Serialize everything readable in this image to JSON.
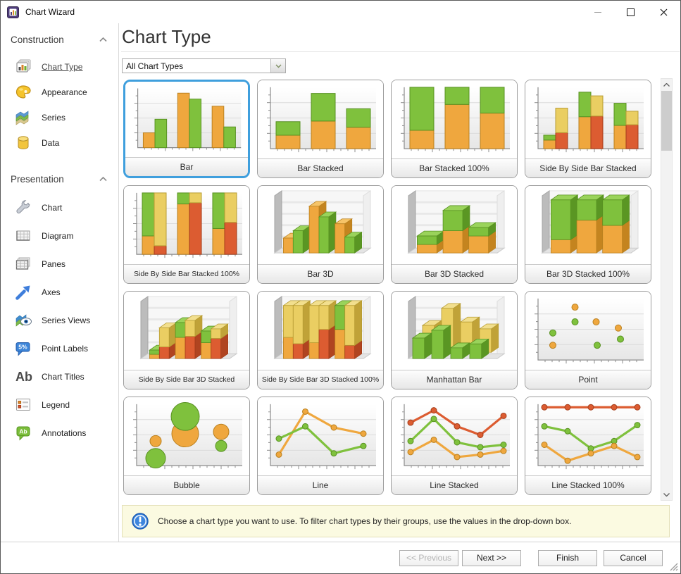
{
  "window": {
    "title": "Chart Wizard",
    "controls": [
      {
        "name": "minimize"
      },
      {
        "name": "maximize"
      },
      {
        "name": "close"
      }
    ]
  },
  "palette": {
    "o": {
      "f": "#EFA73E",
      "t": "#F6C468",
      "s": "#C4841F",
      "k": "#B9801F"
    },
    "g": {
      "f": "#7FC13D",
      "t": "#9AD35B",
      "s": "#5A9623",
      "k": "#579121"
    },
    "r": {
      "f": "#DC5C31",
      "t": "#E87F55",
      "s": "#B04420",
      "k": "#A43D1A"
    },
    "y": {
      "f": "#EACE62",
      "t": "#F2DF8E",
      "s": "#C0A238",
      "k": "#B79C33"
    }
  },
  "accent": "#3F9FDD",
  "sidebar": {
    "groups": [
      {
        "label": "Construction",
        "collapsed": false,
        "items": [
          {
            "label": "Chart Type",
            "icon": "chart-type",
            "selected": true
          },
          {
            "label": "Appearance",
            "icon": "appearance",
            "selected": false
          },
          {
            "label": "Series",
            "icon": "series",
            "selected": false
          },
          {
            "label": "Data",
            "icon": "data",
            "selected": false
          }
        ]
      },
      {
        "label": "Presentation",
        "collapsed": false,
        "items": [
          {
            "label": "Chart",
            "icon": "chart",
            "selected": false
          },
          {
            "label": "Diagram",
            "icon": "diagram",
            "selected": false
          },
          {
            "label": "Panes",
            "icon": "panes",
            "selected": false
          },
          {
            "label": "Axes",
            "icon": "axes",
            "selected": false
          },
          {
            "label": "Series Views",
            "icon": "series-views",
            "selected": false
          },
          {
            "label": "Point Labels",
            "icon": "point-labels",
            "selected": false
          },
          {
            "label": "Chart Titles",
            "icon": "chart-titles",
            "selected": false
          },
          {
            "label": "Legend",
            "icon": "legend",
            "selected": false
          },
          {
            "label": "Annotations",
            "icon": "annotations",
            "selected": false
          }
        ]
      }
    ]
  },
  "main": {
    "title": "Chart Type",
    "filter": {
      "value": "All Chart Types"
    },
    "info": "Choose a chart type you want to use. To filter chart types by their groups, use the values in the drop-down box.",
    "tiles": [
      {
        "label": "Bar",
        "selected": true,
        "chart": {
          "t": "bars",
          "g": [
            [
              [
                [
                  "o",
                  25
                ]
              ],
              [
                [
                  "g",
                  48
                ]
              ]
            ],
            [
              [
                [
                  "o",
                  92
                ]
              ],
              [
                [
                  "g",
                  82
                ]
              ]
            ],
            [
              [
                [
                  "o",
                  70
                ]
              ],
              [
                [
                  "g",
                  35
                ]
              ]
            ]
          ]
        }
      },
      {
        "label": "Bar Stacked",
        "selected": false,
        "chart": {
          "t": "bars",
          "g": [
            [
              [
                [
                  "o",
                  22
                ],
                [
                  "g",
                  22
                ]
              ]
            ],
            [
              [
                [
                  "o",
                  45
                ],
                [
                  "g",
                  45
                ]
              ]
            ],
            [
              [
                [
                  "o",
                  35
                ],
                [
                  "g",
                  30
                ]
              ]
            ]
          ]
        }
      },
      {
        "label": "Bar Stacked 100%",
        "selected": false,
        "chart": {
          "t": "bars",
          "g": [
            [
              [
                [
                  "o",
                  30
                ],
                [
                  "g",
                  70
                ]
              ]
            ],
            [
              [
                [
                  "o",
                  72
                ],
                [
                  "g",
                  28
                ]
              ]
            ],
            [
              [
                [
                  "o",
                  58
                ],
                [
                  "g",
                  42
                ]
              ]
            ]
          ]
        }
      },
      {
        "label": "Side By Side Bar Stacked",
        "selected": false,
        "chart": {
          "t": "bars",
          "g": [
            [
              [
                [
                  "o",
                  14
                ],
                [
                  "g",
                  8
                ]
              ],
              [
                [
                  "r",
                  26
                ],
                [
                  "y",
                  40
                ]
              ]
            ],
            [
              [
                [
                  "o",
                  52
                ],
                [
                  "g",
                  40
                ]
              ],
              [
                [
                  "r",
                  53
                ],
                [
                  "y",
                  33
                ]
              ]
            ],
            [
              [
                [
                  "o",
                  38
                ],
                [
                  "g",
                  36
                ]
              ],
              [
                [
                  "r",
                  39
                ],
                [
                  "y",
                  22
                ]
              ]
            ]
          ]
        }
      },
      {
        "label": "Side By Side Bar Stacked 100%",
        "selected": false,
        "chart": {
          "t": "bars",
          "g": [
            [
              [
                [
                  "o",
                  30
                ],
                [
                  "g",
                  70
                ]
              ],
              [
                [
                  "r",
                  14
                ],
                [
                  "y",
                  86
                ]
              ]
            ],
            [
              [
                [
                  "o",
                  82
                ],
                [
                  "g",
                  18
                ]
              ],
              [
                [
                  "r",
                  84
                ],
                [
                  "y",
                  16
                ]
              ]
            ],
            [
              [
                [
                  "o",
                  42
                ],
                [
                  "g",
                  58
                ]
              ],
              [
                [
                  "r",
                  52
                ],
                [
                  "y",
                  48
                ]
              ]
            ]
          ]
        }
      },
      {
        "label": "Bar 3D",
        "selected": false,
        "chart": {
          "t": "bars3d",
          "g": [
            [
              [
                [
                  "o",
                  28
                ]
              ],
              [
                [
                  "g",
                  42
                ]
              ]
            ],
            [
              [
                [
                  "o",
                  88
                ]
              ],
              [
                [
                  "g",
                  68
                ]
              ]
            ],
            [
              [
                [
                  "o",
                  55
                ]
              ],
              [
                [
                  "g",
                  30
                ]
              ]
            ]
          ]
        }
      },
      {
        "label": "Bar 3D Stacked",
        "selected": false,
        "chart": {
          "t": "bars3d",
          "g": [
            [
              [
                [
                  "o",
                  16
                ],
                [
                  "g",
                  16
                ]
              ]
            ],
            [
              [
                [
                  "o",
                  42
                ],
                [
                  "g",
                  38
                ]
              ]
            ],
            [
              [
                [
                  "o",
                  32
                ],
                [
                  "g",
                  16
                ]
              ]
            ]
          ]
        }
      },
      {
        "label": "Bar 3D Stacked 100%",
        "selected": false,
        "chart": {
          "t": "bars3d",
          "g": [
            [
              [
                [
                  "o",
                  25
                ],
                [
                  "g",
                  75
                ]
              ]
            ],
            [
              [
                [
                  "o",
                  62
                ],
                [
                  "g",
                  38
                ]
              ]
            ],
            [
              [
                [
                  "o",
                  52
                ],
                [
                  "g",
                  48
                ]
              ]
            ]
          ]
        }
      },
      {
        "label": "Side By Side Bar 3D Stacked",
        "selected": false,
        "chart": {
          "t": "bars3d",
          "g": [
            [
              [
                [
                  "o",
                  8
                ],
                [
                  "g",
                  8
                ]
              ],
              [
                [
                  "r",
                  22
                ],
                [
                  "y",
                  36
                ]
              ]
            ],
            [
              [
                [
                  "o",
                  40
                ],
                [
                  "g",
                  28
                ]
              ],
              [
                [
                  "r",
                  42
                ],
                [
                  "y",
                  30
                ]
              ]
            ],
            [
              [
                [
                  "o",
                  30
                ],
                [
                  "g",
                  22
                ]
              ],
              [
                [
                  "r",
                  38
                ],
                [
                  "y",
                  18
                ]
              ]
            ]
          ]
        }
      },
      {
        "label": "Side By Side Bar 3D Stacked 100%",
        "selected": false,
        "chart": {
          "t": "bars3d",
          "g": [
            [
              [
                [
                  "o",
                  40
                ],
                [
                  "y",
                  60
                ]
              ],
              [
                [
                  "r",
                  28
                ],
                [
                  "y",
                  72
                ]
              ]
            ],
            [
              [
                [
                  "o",
                  30
                ],
                [
                  "y",
                  70
                ]
              ],
              [
                [
                  "r",
                  55
                ],
                [
                  "y",
                  45
                ]
              ]
            ],
            [
              [
                [
                  "o",
                  55
                ],
                [
                  "g",
                  45
                ]
              ],
              [
                [
                  "r",
                  25
                ],
                [
                  "y",
                  75
                ]
              ]
            ]
          ]
        }
      },
      {
        "label": "Manhattan Bar",
        "selected": false,
        "chart": {
          "t": "manhattan",
          "rows": [
            {
              "c": "y",
              "v": [
                55,
                90,
                62,
                48
              ]
            },
            {
              "c": "g",
              "v": [
                42,
                58,
                22,
                30
              ]
            }
          ]
        }
      },
      {
        "label": "Point",
        "selected": false,
        "chart": {
          "t": "scatter",
          "p": [
            [
              "o",
              35,
              86
            ],
            [
              "g",
              35,
              62
            ],
            [
              "o",
              55,
              62
            ],
            [
              "o",
              76,
              52
            ],
            [
              "g",
              14,
              44
            ],
            [
              "o",
              14,
              24
            ],
            [
              "g",
              56,
              24
            ],
            [
              "g",
              78,
              34
            ]
          ]
        }
      },
      {
        "label": "Bubble",
        "selected": false,
        "chart": {
          "t": "bubble",
          "p": [
            [
              "g",
              18,
              12,
              14
            ],
            [
              "o",
              18,
              40,
              8
            ],
            [
              "o",
              46,
              52,
              19
            ],
            [
              "g",
              46,
              80,
              20
            ],
            [
              "o",
              80,
              55,
              11
            ],
            [
              "g",
              80,
              32,
              8
            ]
          ]
        }
      },
      {
        "label": "Line",
        "selected": false,
        "chart": {
          "t": "lines",
          "x": [
            8,
            33,
            60,
            88
          ],
          "s": [
            {
              "c": "o",
              "v": [
                18,
                88,
                62,
                52
              ]
            },
            {
              "c": "g",
              "v": [
                44,
                64,
                20,
                32
              ]
            }
          ]
        }
      },
      {
        "label": "Line Stacked",
        "selected": false,
        "chart": {
          "t": "lines",
          "x": [
            6,
            28,
            50,
            72,
            94
          ],
          "s": [
            {
              "c": "r",
              "v": [
                70,
                90,
                64,
                50,
                81
              ]
            },
            {
              "c": "g",
              "v": [
                40,
                76,
                38,
                30,
                34
              ]
            },
            {
              "c": "o",
              "v": [
                22,
                42,
                14,
                18,
                24
              ]
            }
          ]
        }
      },
      {
        "label": "Line Stacked 100%",
        "selected": false,
        "chart": {
          "t": "lines",
          "x": [
            6,
            28,
            50,
            72,
            94
          ],
          "s": [
            {
              "c": "r",
              "v": [
                95,
                95,
                95,
                95,
                95
              ]
            },
            {
              "c": "g",
              "v": [
                64,
                56,
                28,
                40,
                66
              ]
            },
            {
              "c": "o",
              "v": [
                34,
                8,
                20,
                32,
                14
              ]
            }
          ]
        }
      }
    ],
    "buttons": [
      {
        "label": "<< Previous",
        "disabled": true
      },
      {
        "label": "Next >>",
        "disabled": false
      },
      {
        "label": "Finish",
        "disabled": false
      },
      {
        "label": "Cancel",
        "disabled": false
      }
    ]
  }
}
